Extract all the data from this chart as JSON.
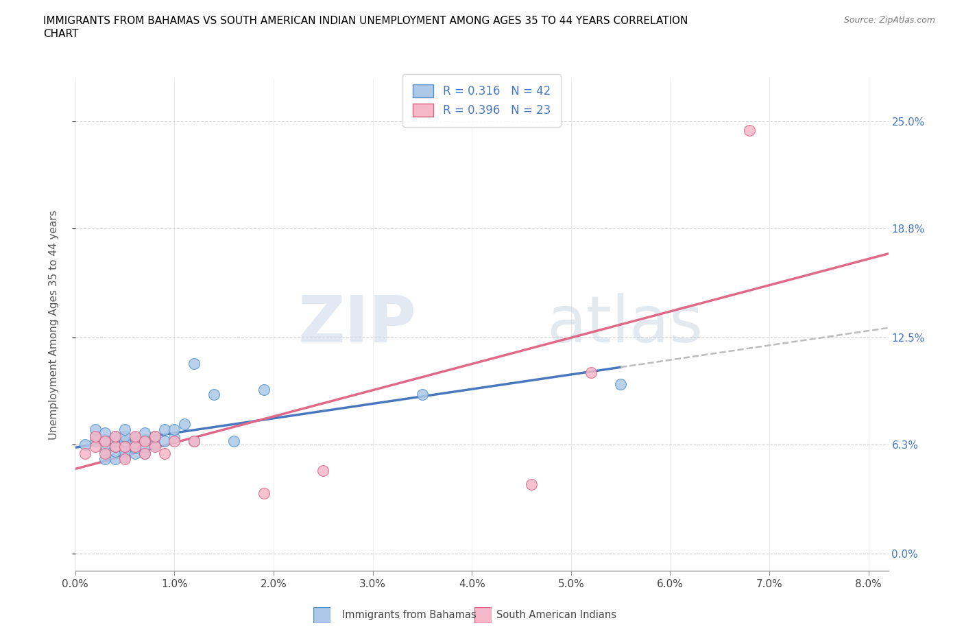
{
  "title_line1": "IMMIGRANTS FROM BAHAMAS VS SOUTH AMERICAN INDIAN UNEMPLOYMENT AMONG AGES 35 TO 44 YEARS CORRELATION",
  "title_line2": "CHART",
  "source": "Source: ZipAtlas.com",
  "ylabel_label": "Unemployment Among Ages 35 to 44 years",
  "xlim": [
    0.0,
    0.082
  ],
  "ylim": [
    -0.01,
    0.275
  ],
  "ytick_vals": [
    0.0,
    0.063,
    0.125,
    0.188,
    0.25
  ],
  "ytick_labels": [
    "0.0%",
    "6.3%",
    "12.5%",
    "18.8%",
    "25.0%"
  ],
  "xtick_vals": [
    0.0,
    0.01,
    0.02,
    0.03,
    0.04,
    0.05,
    0.06,
    0.07,
    0.08
  ],
  "xtick_labels": [
    "0.0%",
    "1.0%",
    "2.0%",
    "3.0%",
    "4.0%",
    "5.0%",
    "6.0%",
    "7.0%",
    "8.0%"
  ],
  "watermark_zip": "ZIP",
  "watermark_atlas": "atlas",
  "legend_r1": "0.316",
  "legend_n1": "42",
  "legend_r2": "0.396",
  "legend_n2": "23",
  "color_blue_fill": "#adc8e8",
  "color_pink_fill": "#f5b8c8",
  "color_blue_edge": "#5090c8",
  "color_pink_edge": "#e06080",
  "line_blue": "#4878c0",
  "line_pink": "#e06888",
  "line_gray": "#bbbbbb",
  "bahamas_x": [
    0.001,
    0.002,
    0.002,
    0.002,
    0.003,
    0.003,
    0.003,
    0.003,
    0.003,
    0.004,
    0.004,
    0.004,
    0.004,
    0.004,
    0.005,
    0.005,
    0.005,
    0.005,
    0.005,
    0.005,
    0.006,
    0.006,
    0.006,
    0.006,
    0.007,
    0.007,
    0.007,
    0.007,
    0.008,
    0.008,
    0.009,
    0.009,
    0.01,
    0.01,
    0.011,
    0.012,
    0.012,
    0.014,
    0.016,
    0.019,
    0.035,
    0.055
  ],
  "bahamas_y": [
    0.063,
    0.065,
    0.068,
    0.072,
    0.055,
    0.06,
    0.063,
    0.066,
    0.07,
    0.055,
    0.059,
    0.062,
    0.065,
    0.068,
    0.056,
    0.059,
    0.062,
    0.065,
    0.068,
    0.072,
    0.058,
    0.061,
    0.064,
    0.067,
    0.058,
    0.062,
    0.066,
    0.07,
    0.063,
    0.068,
    0.065,
    0.072,
    0.067,
    0.072,
    0.075,
    0.065,
    0.11,
    0.092,
    0.065,
    0.095,
    0.092,
    0.098
  ],
  "sai_x": [
    0.001,
    0.002,
    0.002,
    0.003,
    0.003,
    0.004,
    0.004,
    0.005,
    0.005,
    0.006,
    0.006,
    0.007,
    0.007,
    0.008,
    0.008,
    0.009,
    0.01,
    0.012,
    0.019,
    0.025,
    0.046,
    0.052,
    0.068
  ],
  "sai_y": [
    0.058,
    0.062,
    0.068,
    0.058,
    0.065,
    0.062,
    0.068,
    0.055,
    0.062,
    0.062,
    0.068,
    0.058,
    0.065,
    0.062,
    0.068,
    0.058,
    0.065,
    0.065,
    0.035,
    0.048,
    0.04,
    0.105,
    0.245
  ]
}
